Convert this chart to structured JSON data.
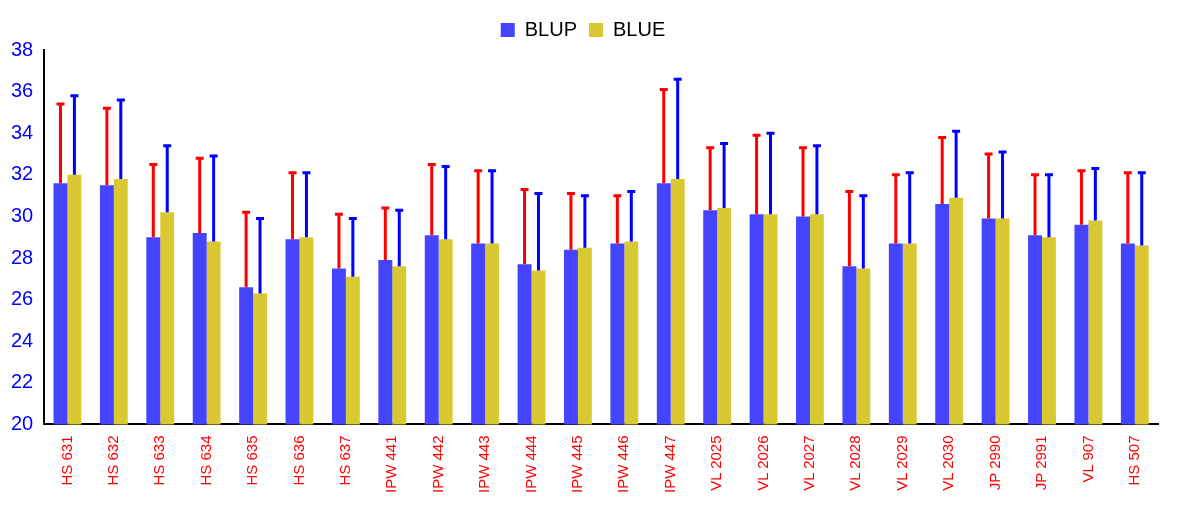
{
  "chart_data": {
    "type": "bar",
    "categories": [
      "HS 631",
      "HS 632",
      "HS 633",
      "HS 634",
      "HS 635",
      "HS 636",
      "HS 637",
      "IPW 441",
      "IPW 442",
      "IPW 443",
      "IPW 444",
      "IPW 445",
      "IPW 446",
      "IPW 447",
      "VL 2025",
      "VL 2026",
      "VL 2027",
      "VL 2028",
      "VL 2029",
      "VL 2030",
      "JP 2990",
      "JP 2991",
      "VL 907",
      "HS 507"
    ],
    "series": [
      {
        "name": "BLUP",
        "color": "#4444ff",
        "values": [
          31.6,
          31.5,
          29.0,
          29.2,
          26.6,
          28.9,
          27.5,
          27.9,
          29.1,
          28.7,
          27.7,
          28.4,
          28.7,
          31.6,
          30.3,
          30.1,
          30.0,
          27.6,
          28.7,
          30.6,
          29.9,
          29.1,
          29.6,
          28.7
        ],
        "errors": [
          [
            31.6,
            35.4
          ],
          [
            31.5,
            35.2
          ],
          [
            29.0,
            32.5
          ],
          [
            29.2,
            32.8
          ],
          [
            26.6,
            30.2
          ],
          [
            28.9,
            32.1
          ],
          [
            27.5,
            30.1
          ],
          [
            27.9,
            30.4
          ],
          [
            29.1,
            32.5
          ],
          [
            28.7,
            32.2
          ],
          [
            27.7,
            31.3
          ],
          [
            28.4,
            31.1
          ],
          [
            28.7,
            31.0
          ],
          [
            31.6,
            36.1
          ],
          [
            30.3,
            33.3
          ],
          [
            30.1,
            33.9
          ],
          [
            30.0,
            33.3
          ],
          [
            27.6,
            31.2
          ],
          [
            28.7,
            32.0
          ],
          [
            30.6,
            33.8
          ],
          [
            29.9,
            33.0
          ],
          [
            29.1,
            32.0
          ],
          [
            29.6,
            32.2
          ],
          [
            28.7,
            32.1
          ]
        ]
      },
      {
        "name": "BLUE",
        "color": "#d9c832",
        "values": [
          32.0,
          31.8,
          30.2,
          28.8,
          26.3,
          29.0,
          27.1,
          27.6,
          28.9,
          28.7,
          27.4,
          28.5,
          28.8,
          31.8,
          30.4,
          30.1,
          30.1,
          27.5,
          28.7,
          30.9,
          29.9,
          29.0,
          29.8,
          28.6
        ],
        "errors": [
          [
            32.0,
            35.8
          ],
          [
            31.8,
            35.6
          ],
          [
            30.2,
            33.4
          ],
          [
            28.8,
            32.9
          ],
          [
            26.3,
            29.9
          ],
          [
            29.0,
            32.1
          ],
          [
            27.1,
            29.9
          ],
          [
            27.6,
            30.3
          ],
          [
            28.9,
            32.4
          ],
          [
            28.7,
            32.2
          ],
          [
            27.4,
            31.1
          ],
          [
            28.5,
            31.0
          ],
          [
            28.8,
            31.2
          ],
          [
            31.8,
            36.6
          ],
          [
            30.4,
            33.5
          ],
          [
            30.1,
            34.0
          ],
          [
            30.1,
            33.4
          ],
          [
            27.5,
            31.0
          ],
          [
            28.7,
            32.1
          ],
          [
            30.9,
            34.1
          ],
          [
            29.9,
            33.1
          ],
          [
            29.0,
            32.0
          ],
          [
            29.8,
            32.3
          ],
          [
            28.6,
            32.1
          ]
        ]
      }
    ],
    "ylim": [
      20,
      38
    ],
    "yticks": [
      20,
      22,
      24,
      26,
      28,
      30,
      32,
      34,
      36,
      38
    ],
    "grid": false,
    "legend": "top"
  }
}
